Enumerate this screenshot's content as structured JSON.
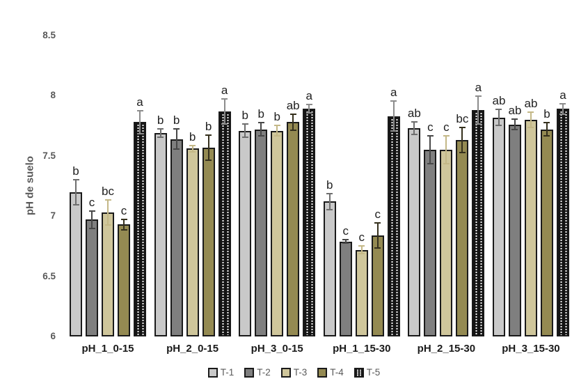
{
  "colors": {
    "axis_text": "#595959",
    "letter_text": "#212121",
    "category_text": "#1a1a1a",
    "bar_border": "#1a1a1a",
    "background": "#ffffff"
  },
  "chart_data": {
    "type": "bar",
    "title": "",
    "xlabel": "",
    "ylabel": "pH de suelo",
    "ylim": [
      6,
      8.5
    ],
    "yticks": [
      6,
      6.5,
      7,
      7.5,
      8,
      8.5
    ],
    "grid": false,
    "legend_position": "bottom-center",
    "error_bars": true,
    "categories": [
      "pH_1_0-15",
      "pH_2_0-15",
      "pH_3_0-15",
      "pH_1_15-30",
      "pH_2_15-30",
      "pH_3_15-30"
    ],
    "series": [
      {
        "name": "T-1",
        "color": "#c9c9c9",
        "error_color": "#6e6e6e",
        "values": [
          7.2,
          7.69,
          7.71,
          7.12,
          7.73,
          7.82
        ],
        "errors": [
          0.11,
          0.04,
          0.06,
          0.07,
          0.06,
          0.07
        ],
        "letters": [
          "b",
          "b",
          "b",
          "b",
          "ab",
          "ab"
        ]
      },
      {
        "name": "T-2",
        "color": "#7f7f7f",
        "error_color": "#474747",
        "values": [
          6.97,
          7.64,
          7.72,
          6.79,
          7.55,
          7.76
        ],
        "errors": [
          0.08,
          0.09,
          0.06,
          0.02,
          0.12,
          0.05
        ],
        "letters": [
          "c",
          "b",
          "b",
          "c",
          "c",
          "ab"
        ]
      },
      {
        "name": "T-3",
        "color": "#cfc69b",
        "error_color": "#c4b887",
        "values": [
          7.03,
          7.56,
          7.71,
          6.72,
          7.55,
          7.8
        ],
        "errors": [
          0.11,
          0.03,
          0.05,
          0.04,
          0.12,
          0.07
        ],
        "letters": [
          "bc",
          "b",
          "b",
          "c",
          "c",
          "ab"
        ]
      },
      {
        "name": "T-4",
        "color": "#948a52",
        "error_color": "#35301d",
        "values": [
          6.93,
          7.57,
          7.78,
          6.84,
          7.63,
          7.72
        ],
        "errors": [
          0.05,
          0.11,
          0.07,
          0.11,
          0.11,
          0.06
        ],
        "letters": [
          "c",
          "b",
          "ab",
          "c",
          "bc",
          "b"
        ]
      },
      {
        "name": "T-5",
        "color": "#141414",
        "pattern": "dots",
        "error_color": "#8c8c8c",
        "values": [
          7.78,
          7.87,
          7.89,
          7.83,
          7.88,
          7.89
        ],
        "errors": [
          0.1,
          0.11,
          0.04,
          0.13,
          0.12,
          0.05
        ],
        "letters": [
          "a",
          "a",
          "a",
          "a",
          "a",
          "a"
        ]
      }
    ]
  }
}
